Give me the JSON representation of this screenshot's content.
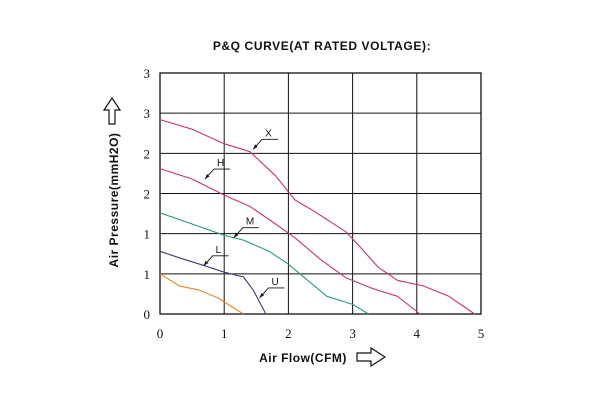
{
  "chart_data": {
    "type": "line",
    "title": "P&Q CURVE(AT RATED VOLTAGE):",
    "xlabel": "Air Flow(CFM)",
    "ylabel": "Air Pressure(mmH2O)",
    "xlim": [
      0,
      5
    ],
    "ylim": [
      0,
      3
    ],
    "x_ticks": [
      "0",
      "1",
      "2",
      "3",
      "4",
      "5"
    ],
    "y_tick_labels": [
      "0",
      "1",
      "1",
      "2",
      "2",
      "3",
      "3"
    ],
    "y_tick_values": [
      0,
      0.5,
      1.0,
      1.5,
      2.0,
      2.5,
      3.0
    ],
    "grid": true,
    "series": [
      {
        "name": "X",
        "color": "#c8375f",
        "label_anchor": [
          1.45,
          2.05
        ],
        "points": [
          [
            0,
            2.42
          ],
          [
            0.5,
            2.3
          ],
          [
            1.0,
            2.12
          ],
          [
            1.4,
            2.02
          ],
          [
            1.8,
            1.72
          ],
          [
            2.1,
            1.42
          ],
          [
            2.4,
            1.28
          ],
          [
            2.9,
            1.02
          ],
          [
            3.1,
            0.85
          ],
          [
            3.4,
            0.58
          ],
          [
            3.7,
            0.42
          ],
          [
            4.1,
            0.35
          ],
          [
            4.5,
            0.22
          ],
          [
            4.9,
            0.0
          ]
        ]
      },
      {
        "name": "H",
        "color": "#c8375f",
        "label_anchor": [
          0.7,
          1.68
        ],
        "points": [
          [
            0,
            1.81
          ],
          [
            0.5,
            1.68
          ],
          [
            1.0,
            1.48
          ],
          [
            1.4,
            1.34
          ],
          [
            1.8,
            1.12
          ],
          [
            2.1,
            0.95
          ],
          [
            2.5,
            0.68
          ],
          [
            2.9,
            0.45
          ],
          [
            3.3,
            0.32
          ],
          [
            3.7,
            0.22
          ],
          [
            4.05,
            0.0
          ]
        ]
      },
      {
        "name": "M",
        "color": "#2e9c76",
        "label_anchor": [
          1.15,
          0.95
        ],
        "points": [
          [
            0,
            1.26
          ],
          [
            0.5,
            1.12
          ],
          [
            1.0,
            0.98
          ],
          [
            1.3,
            0.92
          ],
          [
            1.7,
            0.78
          ],
          [
            2.0,
            0.62
          ],
          [
            2.3,
            0.42
          ],
          [
            2.6,
            0.22
          ],
          [
            3.0,
            0.12
          ],
          [
            3.25,
            0.0
          ]
        ]
      },
      {
        "name": "L",
        "color": "#3e3d7e",
        "label_anchor": [
          0.68,
          0.6
        ],
        "points": [
          [
            0,
            0.78
          ],
          [
            0.3,
            0.7
          ],
          [
            0.7,
            0.6
          ],
          [
            1.0,
            0.52
          ],
          [
            1.3,
            0.46
          ],
          [
            1.45,
            0.3
          ],
          [
            1.55,
            0.15
          ],
          [
            1.65,
            0.0
          ]
        ]
      },
      {
        "name": "U",
        "color": "#e08a2e",
        "label_anchor": [
          1.55,
          0.2
        ],
        "points": [
          [
            0,
            0.5
          ],
          [
            0.3,
            0.35
          ],
          [
            0.6,
            0.3
          ],
          [
            0.9,
            0.2
          ],
          [
            1.1,
            0.1
          ],
          [
            1.3,
            0.0
          ]
        ]
      }
    ]
  }
}
